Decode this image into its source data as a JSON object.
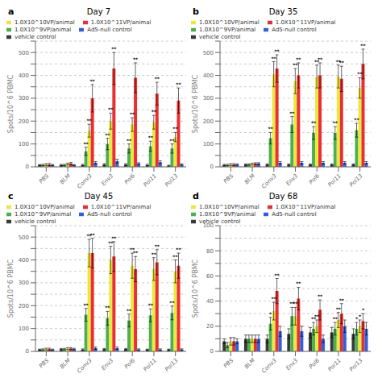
{
  "chart_data": [
    {
      "type": "bar",
      "title": "Day 7",
      "annotations": [
        "a"
      ],
      "ylabel": "Spots/10^6 PBMC",
      "categories": [
        "PBS",
        "BLM",
        "Conv3",
        "Env3",
        "Pol6",
        "Pol11",
        "Pol13"
      ],
      "ylim": [
        0,
        550
      ],
      "yticks": [
        0,
        {
          "value": 50,
          "label": null
        },
        100,
        {
          "value": 150,
          "label": null
        },
        200,
        {
          "value": 250,
          "label": null
        },
        300,
        {
          "value": 350,
          "label": null
        },
        400,
        {
          "value": 450,
          "label": null
        },
        500,
        {
          "value": 550,
          "label": null
        }
      ],
      "grid": true,
      "legend": "top",
      "series": [
        {
          "name": "vehicle control",
          "color": "#3a3a3a",
          "values": [
            8,
            8,
            8,
            10,
            10,
            8,
            5
          ],
          "errors": [
            2,
            2,
            3,
            4,
            4,
            3,
            2
          ]
        },
        {
          "name": "1.0X10^9VP/animal",
          "color": "#4caf50",
          "values": [
            8,
            8,
            68,
            100,
            80,
            90,
            80
          ],
          "errors": [
            3,
            3,
            18,
            25,
            20,
            22,
            20
          ],
          "significance": [
            null,
            null,
            "**",
            "**",
            "**",
            "**",
            "**"
          ]
        },
        {
          "name": "1.0X10^10VP/animal",
          "color": "#e8e840",
          "values": [
            10,
            12,
            158,
            200,
            185,
            195,
            130
          ],
          "errors": [
            4,
            4,
            28,
            35,
            30,
            30,
            20
          ],
          "significance": [
            null,
            null,
            "**",
            "**",
            "**",
            "**",
            "**"
          ]
        },
        {
          "name": "1.0X10^11VP/animal",
          "color": "#e83030",
          "values": [
            10,
            14,
            300,
            430,
            390,
            320,
            290
          ],
          "errors": [
            5,
            5,
            60,
            70,
            65,
            50,
            55
          ],
          "significance": [
            null,
            null,
            "**",
            "**",
            "**",
            "**",
            "**"
          ]
        },
        {
          "name": "Ad5-null control",
          "color": "#3060e0",
          "values": [
            8,
            8,
            18,
            25,
            14,
            20,
            10
          ],
          "errors": [
            2,
            2,
            5,
            8,
            4,
            6,
            3
          ]
        }
      ]
    },
    {
      "type": "bar",
      "title": "Day 35",
      "annotations": [
        "b"
      ],
      "ylabel": "Spots/10^6 PBMC",
      "categories": [
        "PBS",
        "BLM",
        "Conv3",
        "Env3",
        "Pol6",
        "Pol11",
        "Pol13"
      ],
      "ylim": [
        0,
        550
      ],
      "yticks": [
        0,
        {
          "value": 50,
          "label": null
        },
        100,
        {
          "value": 150,
          "label": null
        },
        200,
        {
          "value": 250,
          "label": null
        },
        300,
        {
          "value": 350,
          "label": null
        },
        400,
        {
          "value": 450,
          "label": null
        },
        500,
        {
          "value": 550,
          "label": null
        }
      ],
      "grid": true,
      "legend": "top",
      "series": [
        {
          "name": "vehicle control",
          "color": "#3a3a3a",
          "values": [
            8,
            10,
            10,
            10,
            10,
            10,
            10
          ],
          "errors": [
            3,
            3,
            3,
            3,
            3,
            3,
            3
          ]
        },
        {
          "name": "1.0X10^9VP/animal",
          "color": "#4caf50",
          "values": [
            8,
            10,
            125,
            185,
            148,
            148,
            160
          ],
          "errors": [
            3,
            3,
            25,
            35,
            28,
            28,
            30
          ],
          "significance": [
            null,
            null,
            "**",
            "**",
            "**",
            "**",
            "**"
          ]
        },
        {
          "name": "1.0X10^10VP/animal",
          "color": "#e8e840",
          "values": [
            10,
            12,
            405,
            375,
            395,
            395,
            345
          ],
          "errors": [
            4,
            4,
            55,
            55,
            50,
            50,
            45
          ],
          "significance": [
            null,
            null,
            "**",
            "**",
            "**",
            "**",
            "**"
          ]
        },
        {
          "name": "1.0X10^11VP/animal",
          "color": "#e83030",
          "values": [
            10,
            14,
            430,
            400,
            400,
            385,
            450
          ],
          "errors": [
            4,
            4,
            60,
            55,
            55,
            55,
            65
          ],
          "significance": [
            null,
            null,
            "**",
            "**",
            "**",
            "**",
            "**"
          ]
        },
        {
          "name": "Ad5-null control",
          "color": "#3060e0",
          "values": [
            10,
            14,
            18,
            18,
            18,
            18,
            18
          ],
          "errors": [
            3,
            4,
            5,
            5,
            5,
            5,
            5
          ]
        }
      ]
    },
    {
      "type": "bar",
      "title": "Day 45",
      "annotations": [
        "c"
      ],
      "ylabel": "Spots/10^6 PBMC",
      "categories": [
        "PBS",
        "BLM",
        "Conv3",
        "Env3",
        "Pol6",
        "Pol11",
        "Pol13"
      ],
      "ylim": [
        0,
        550
      ],
      "yticks": [
        0,
        {
          "value": 50,
          "label": null
        },
        100,
        {
          "value": 150,
          "label": null
        },
        200,
        {
          "value": 250,
          "label": null
        },
        300,
        {
          "value": 350,
          "label": null
        },
        400,
        {
          "value": 450,
          "label": null
        },
        500,
        {
          "value": 550,
          "label": null
        }
      ],
      "grid": true,
      "legend": "top",
      "series": [
        {
          "name": "vehicle control",
          "color": "#3a3a3a",
          "values": [
            8,
            10,
            8,
            10,
            10,
            8,
            8
          ],
          "errors": [
            2,
            3,
            3,
            3,
            3,
            2,
            2
          ]
        },
        {
          "name": "1.0X10^9VP/animal",
          "color": "#4caf50",
          "values": [
            8,
            10,
            160,
            145,
            135,
            158,
            168
          ],
          "errors": [
            3,
            3,
            28,
            30,
            28,
            28,
            30
          ],
          "significance": [
            null,
            null,
            "**",
            "**",
            "**",
            "**",
            "**"
          ]
        },
        {
          "name": "1.0X10^10VP/animal",
          "color": "#e8e840",
          "values": [
            10,
            12,
            430,
            400,
            375,
            360,
            350
          ],
          "errors": [
            4,
            4,
            60,
            60,
            55,
            50,
            50
          ],
          "significance": [
            null,
            null,
            "**",
            "**",
            "**",
            "**",
            "**"
          ]
        },
        {
          "name": "1.0X10^11VP/animal",
          "color": "#e83030",
          "values": [
            10,
            12,
            430,
            415,
            360,
            390,
            375
          ],
          "errors": [
            4,
            4,
            65,
            65,
            55,
            55,
            55
          ],
          "significance": [
            null,
            null,
            "**",
            "**",
            "**",
            "**",
            "**"
          ]
        },
        {
          "name": "Ad5-null control",
          "color": "#3060e0",
          "values": [
            8,
            10,
            14,
            14,
            8,
            8,
            8
          ],
          "errors": [
            2,
            3,
            5,
            5,
            3,
            3,
            3
          ]
        }
      ]
    },
    {
      "type": "bar",
      "title": "Day 68",
      "annotations": [
        "d"
      ],
      "ylabel": "Spots/10^6 PBMC",
      "categories": [
        "PBS",
        "BLM",
        "Conv3",
        "Env3",
        "Pol6",
        "Pol11",
        "Pol13"
      ],
      "ylim": [
        0,
        100
      ],
      "yticks": [
        0,
        {
          "value": 10,
          "label": null
        },
        20,
        {
          "value": 30,
          "label": null
        },
        40,
        {
          "value": 50,
          "label": null
        },
        60,
        {
          "value": 70,
          "label": null
        },
        80,
        {
          "value": 90,
          "label": null
        },
        100
      ],
      "grid": true,
      "legend": "top",
      "series": [
        {
          "name": "vehicle control",
          "color": "#3a3a3a",
          "values": [
            8,
            10,
            10,
            14,
            15,
            15,
            14
          ],
          "errors": [
            2,
            3,
            3,
            4,
            4,
            4,
            4
          ]
        },
        {
          "name": "1.0X10^9VP/animal",
          "color": "#4caf50",
          "values": [
            5,
            10,
            22,
            28,
            18,
            18,
            18
          ],
          "errors": [
            2,
            3,
            5,
            7,
            5,
            5,
            5
          ],
          "significance": [
            null,
            null,
            "*",
            "**",
            "**",
            "**",
            "*"
          ]
        },
        {
          "name": "1.0X10^10VP/animal",
          "color": "#e8e840",
          "values": [
            8,
            10,
            32,
            28,
            20,
            25,
            20
          ],
          "errors": [
            3,
            3,
            7,
            7,
            5,
            6,
            5
          ],
          "significance": [
            null,
            null,
            "**",
            "**",
            "**",
            "**",
            "*"
          ]
        },
        {
          "name": "1.0X10^11VP/animal",
          "color": "#e83030",
          "values": [
            8,
            10,
            48,
            42,
            33,
            30,
            24
          ],
          "errors": [
            3,
            3,
            10,
            9,
            8,
            8,
            6
          ],
          "significance": [
            null,
            null,
            "**",
            "**",
            "**",
            "**",
            "*"
          ]
        },
        {
          "name": "Ad5-null control",
          "color": "#3060e0",
          "values": [
            8,
            10,
            16,
            16,
            10,
            20,
            18
          ],
          "errors": [
            2,
            3,
            4,
            4,
            3,
            5,
            5
          ]
        }
      ]
    }
  ]
}
